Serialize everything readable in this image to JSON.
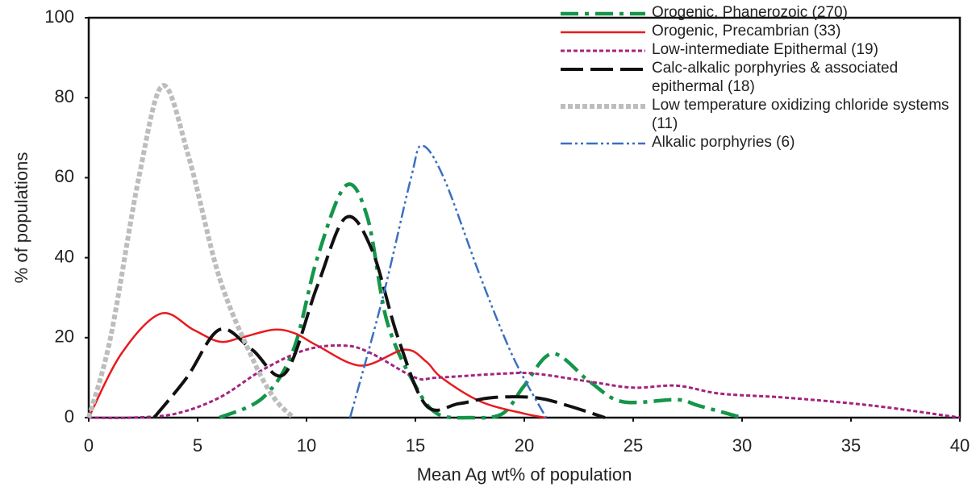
{
  "chart_data": {
    "type": "line",
    "x_label": "Mean Ag wt% of population",
    "y_label": "% of populations",
    "xlim": [
      0,
      40
    ],
    "ylim": [
      0,
      100
    ],
    "xticks": [
      0,
      5,
      10,
      15,
      20,
      25,
      30,
      35,
      40
    ],
    "yticks": [
      0,
      20,
      40,
      60,
      80,
      100
    ],
    "grid": false,
    "legend": "upper right",
    "smooth": true,
    "series": [
      {
        "name": "Orogenic, Phanerozoic (270)",
        "color": "#14964a",
        "style": "dashdot",
        "x": [
          6,
          8,
          9.4,
          10.5,
          11.8,
          12.8,
          13.7,
          15,
          16,
          17.5,
          19,
          20,
          21.3,
          23,
          24.5,
          27,
          28,
          30
        ],
        "values": [
          0,
          5,
          17,
          40,
          58,
          50,
          24,
          8,
          1,
          0,
          1,
          8,
          16,
          9,
          4,
          4.5,
          3,
          0
        ]
      },
      {
        "name": "Orogenic, Precambrian (33)",
        "color": "#e81a1f",
        "style": "solid",
        "x": [
          0,
          1.5,
          3.3,
          4.8,
          6,
          7,
          8.5,
          9.5,
          10.5,
          12.5,
          14.5,
          15.5,
          16.2,
          18,
          20,
          21
        ],
        "values": [
          0,
          16,
          26,
          22,
          19,
          20,
          22,
          21,
          18,
          13,
          17,
          14,
          10,
          4,
          1,
          0
        ]
      },
      {
        "name": "Low-intermediate Epithermal (19)",
        "color": "#a3237f",
        "style": "dotted",
        "x": [
          0,
          2,
          4,
          6,
          8,
          10,
          11.8,
          13,
          15,
          16,
          19,
          20.5,
          23,
          25,
          27,
          29,
          32,
          36,
          40
        ],
        "values": [
          0,
          0,
          1,
          5,
          12,
          17,
          18,
          16,
          10,
          10,
          11,
          11,
          9,
          7.5,
          8,
          6,
          5,
          3,
          0
        ]
      },
      {
        "name": "Calc-alkalic porphyries & associated epithermal (18)",
        "color": "#111111",
        "style": "longdash",
        "x": [
          3,
          4.5,
          6,
          7.5,
          9,
          10.5,
          11.8,
          13,
          14.2,
          15.5,
          17,
          18.5,
          20.5,
          22,
          23.7
        ],
        "values": [
          0,
          10,
          22,
          17,
          11,
          33,
          50,
          42,
          20,
          3,
          3.5,
          5,
          5,
          3,
          0
        ]
      },
      {
        "name": "Low temperature oxidizing chloride systems (11)",
        "color": "#bdbdbd",
        "style": "thickdot",
        "x": [
          0,
          1,
          2.3,
          3.4,
          4.6,
          6,
          7.5,
          8.5,
          9.4
        ],
        "values": [
          0,
          20,
          60,
          83,
          65,
          35,
          15,
          5,
          0
        ]
      },
      {
        "name": "Alkalic porphyries (6)",
        "color": "#3b6fc0",
        "style": "dashdotdot",
        "x": [
          12,
          13.5,
          14.8,
          15.3,
          16.3,
          18,
          19.5,
          21
        ],
        "values": [
          0,
          30,
          60,
          68,
          60,
          35,
          15,
          0
        ]
      }
    ]
  }
}
